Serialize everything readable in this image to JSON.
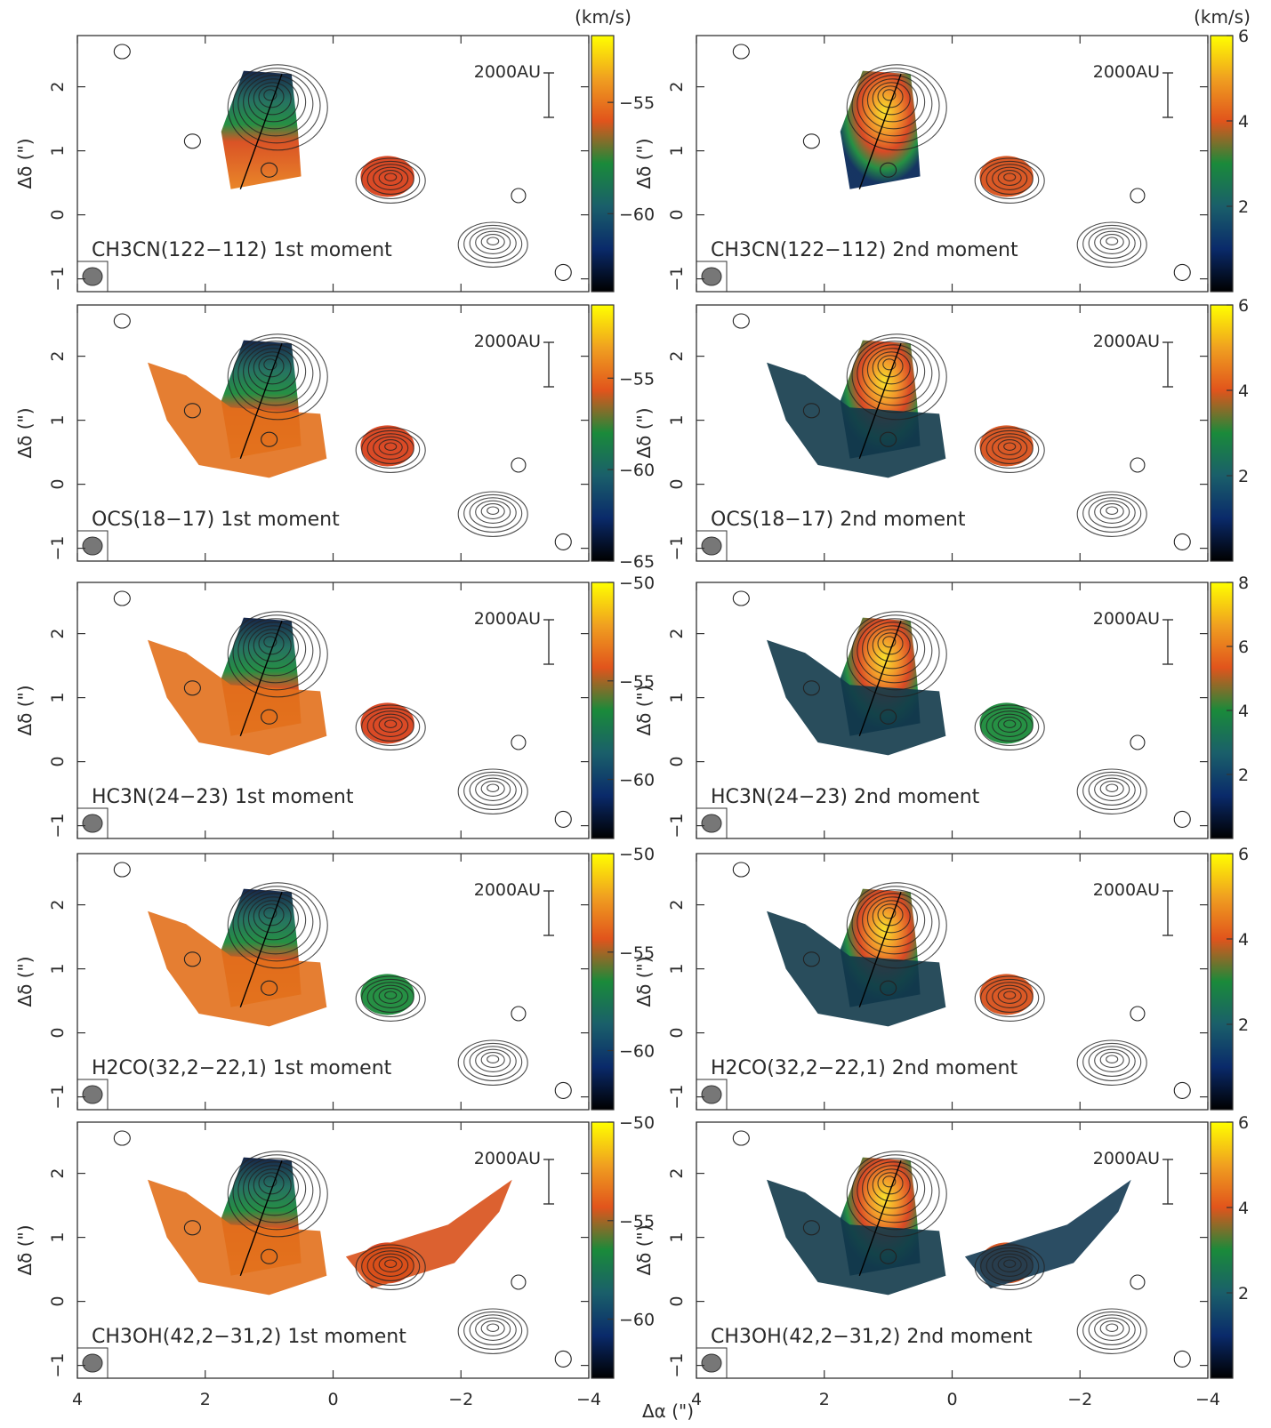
{
  "figure": {
    "x_axis_title": "Δα (\")",
    "y_axis_title": "Δδ (\")",
    "colorbar_unit": "(km/s)",
    "scale_bar_label": "2000AU",
    "ticks": {
      "x_left": [
        "4",
        "2",
        "0",
        "−2",
        "−4"
      ],
      "x_right": [
        "4",
        "2",
        "0",
        "−2",
        "−4"
      ],
      "y": [
        "2",
        "1",
        "0",
        "−1"
      ]
    }
  },
  "chart_data": {
    "type": "heatmap",
    "description_type": "moment maps with contours",
    "xlabel": "Δα (\")",
    "ylabel": "Δδ (\")",
    "xlim": [
      4,
      -4
    ],
    "ylim": [
      -1.2,
      2.8
    ],
    "xticks": [
      4,
      2,
      0,
      -2,
      -4
    ],
    "yticks": [
      2,
      1,
      0,
      -1
    ],
    "colormap": [
      "#000000",
      "#0a2a6a",
      "#1a5f6a",
      "#1a8a3a",
      "#e1541c",
      "#f0a020",
      "#ffff00"
    ],
    "contour_peaks": [
      {
        "x": 1.0,
        "y": 1.9
      },
      {
        "x": -0.9,
        "y": 0.6
      },
      {
        "x": -2.5,
        "y": -0.4
      }
    ],
    "panels": [
      {
        "row": 0,
        "col": 0,
        "molecule_html": "CH<tspan dy='6' font-size='15'>3</tspan><tspan dy='-6'>CN(12</tspan><tspan dy='6' font-size='15'>2</tspan><tspan dy='-6'>−11</tspan><tspan dy='6' font-size='15'>2</tspan><tspan dy='-6'>) 1st moment</tspan>",
        "label": "CH3CN(122−112) 1st moment",
        "moment": 1,
        "colorbar_ticks": [
          -55,
          -60
        ],
        "colorbar_range": [
          -63.5,
          -52
        ],
        "show_unit": true
      },
      {
        "row": 0,
        "col": 1,
        "label": "CH3CN(122−112) 2nd moment",
        "moment": 2,
        "colorbar_ticks": [
          6,
          4,
          2
        ],
        "colorbar_range": [
          0,
          6
        ],
        "show_unit": true
      },
      {
        "row": 1,
        "col": 0,
        "label": "OCS(18−17) 1st moment",
        "moment": 1,
        "colorbar_ticks": [
          -55,
          -60,
          -65
        ],
        "colorbar_range": [
          -65,
          -51
        ],
        "show_unit": false
      },
      {
        "row": 1,
        "col": 1,
        "label": "OCS(18−17) 2nd moment",
        "moment": 2,
        "colorbar_ticks": [
          6,
          4,
          2
        ],
        "colorbar_range": [
          0,
          6
        ],
        "show_unit": false
      },
      {
        "row": 2,
        "col": 0,
        "label": "HC3N(24−23) 1st moment",
        "moment": 1,
        "colorbar_ticks": [
          -50,
          -55,
          -60
        ],
        "colorbar_range": [
          -63,
          -50
        ],
        "show_unit": false
      },
      {
        "row": 2,
        "col": 1,
        "label": "HC3N(24−23) 2nd moment",
        "moment": 2,
        "colorbar_ticks": [
          8,
          6,
          4,
          2
        ],
        "colorbar_range": [
          0,
          8
        ],
        "show_unit": false
      },
      {
        "row": 3,
        "col": 0,
        "label": "H2CO(32,2−22,1) 1st moment",
        "moment": 1,
        "colorbar_ticks": [
          -50,
          -55,
          -60
        ],
        "colorbar_range": [
          -63,
          -50
        ],
        "show_unit": false
      },
      {
        "row": 3,
        "col": 1,
        "label": "H2CO(32,2−22,1) 2nd moment",
        "moment": 2,
        "colorbar_ticks": [
          6,
          4,
          2
        ],
        "colorbar_range": [
          0,
          6
        ],
        "show_unit": false
      },
      {
        "row": 4,
        "col": 0,
        "label": "CH3OH(42,2−31,2) 1st moment",
        "moment": 1,
        "colorbar_ticks": [
          -50,
          -55,
          -60
        ],
        "colorbar_range": [
          -63,
          -50
        ],
        "show_unit": false
      },
      {
        "row": 4,
        "col": 1,
        "label": "CH3OH(42,2−31,2) 2nd moment",
        "moment": 2,
        "colorbar_ticks": [
          6,
          4,
          2
        ],
        "colorbar_range": [
          0,
          6
        ],
        "show_unit": false
      }
    ]
  }
}
